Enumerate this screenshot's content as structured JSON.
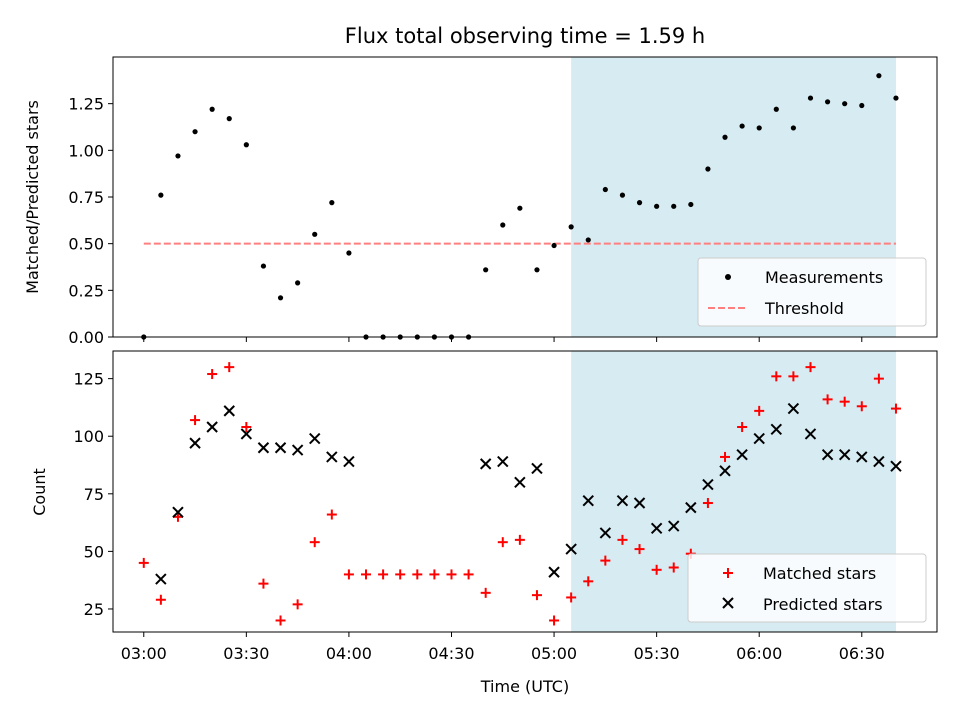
{
  "figure": {
    "title": "Flux total observing time = 1.59 h",
    "xlabel": "Time (UTC)",
    "x_ticks": [
      "03:00",
      "03:30",
      "04:00",
      "04:30",
      "05:00",
      "05:30",
      "06:00",
      "06:30"
    ],
    "highlight_color": "#add8e6"
  },
  "chart_data": [
    {
      "type": "scatter",
      "ylabel": "Matched/Predicted stars",
      "xlim": [
        "02:51",
        "06:52"
      ],
      "ylim": [
        0,
        1.5
      ],
      "y_ticks": [
        "0.00",
        "0.25",
        "0.50",
        "0.75",
        "1.00",
        "1.25"
      ],
      "highlight_span": [
        "05:05",
        "06:40"
      ],
      "legend": [
        {
          "label": "Measurements",
          "marker": "dot",
          "color": "#000000"
        },
        {
          "label": "Threshold",
          "marker": "dashed-line",
          "color": "#ff7f7f"
        }
      ],
      "legend_position": "lower-right",
      "threshold": {
        "value": 0.5,
        "x_start": "03:00",
        "x_end": "06:40"
      },
      "series": [
        {
          "name": "Measurements",
          "x": [
            "03:00",
            "03:05",
            "03:10",
            "03:15",
            "03:20",
            "03:25",
            "03:30",
            "03:35",
            "03:40",
            "03:45",
            "03:50",
            "03:55",
            "04:00",
            "04:05",
            "04:10",
            "04:15",
            "04:20",
            "04:25",
            "04:30",
            "04:35",
            "04:40",
            "04:45",
            "04:50",
            "04:55",
            "05:00",
            "05:05",
            "05:10",
            "05:15",
            "05:20",
            "05:25",
            "05:30",
            "05:35",
            "05:40",
            "05:45",
            "05:50",
            "05:55",
            "06:00",
            "06:05",
            "06:10",
            "06:15",
            "06:20",
            "06:25",
            "06:30",
            "06:35",
            "06:40"
          ],
          "y": [
            0,
            0.76,
            0.97,
            1.1,
            1.22,
            1.17,
            1.03,
            0.38,
            0.21,
            0.29,
            0.55,
            0.72,
            0.45,
            0,
            0,
            0,
            0,
            0,
            0,
            0,
            0.36,
            0.6,
            0.69,
            0.36,
            0.49,
            0.59,
            0.52,
            0.79,
            0.76,
            0.72,
            0.7,
            0.7,
            0.71,
            0.9,
            1.07,
            1.13,
            1.12,
            1.22,
            1.12,
            1.28,
            1.26,
            1.25,
            1.24,
            1.4,
            1.28
          ]
        }
      ]
    },
    {
      "type": "scatter",
      "ylabel": "Count",
      "xlim": [
        "02:51",
        "06:52"
      ],
      "ylim": [
        15,
        137
      ],
      "y_ticks": [
        "25",
        "50",
        "75",
        "100",
        "125"
      ],
      "highlight_span": [
        "05:05",
        "06:40"
      ],
      "legend": [
        {
          "label": "Matched stars",
          "marker": "plus",
          "color": "#ff0000"
        },
        {
          "label": "Predicted stars",
          "marker": "x",
          "color": "#000000"
        }
      ],
      "legend_position": "lower-right",
      "series": [
        {
          "name": "Matched stars",
          "x": [
            "03:00",
            "03:05",
            "03:10",
            "03:15",
            "03:20",
            "03:25",
            "03:30",
            "03:35",
            "03:40",
            "03:45",
            "03:50",
            "03:55",
            "04:00",
            "04:05",
            "04:10",
            "04:15",
            "04:20",
            "04:25",
            "04:30",
            "04:35",
            "04:40",
            "04:45",
            "04:50",
            "04:55",
            "05:00",
            "05:05",
            "05:10",
            "05:15",
            "05:20",
            "05:25",
            "05:30",
            "05:35",
            "05:40",
            "05:45",
            "05:50",
            "05:55",
            "06:00",
            "06:05",
            "06:10",
            "06:15",
            "06:20",
            "06:25",
            "06:30",
            "06:35",
            "06:40"
          ],
          "y": [
            45,
            29,
            65,
            107,
            127,
            130,
            104,
            36,
            20,
            27,
            54,
            66,
            40,
            40,
            40,
            40,
            40,
            40,
            40,
            40,
            32,
            54,
            55,
            31,
            20,
            30,
            37,
            46,
            55,
            51,
            42,
            43,
            49,
            71,
            91,
            104,
            111,
            126,
            126,
            130,
            116,
            115,
            113,
            125,
            112
          ]
        },
        {
          "name": "Predicted stars",
          "x": [
            "03:05",
            "03:10",
            "03:15",
            "03:20",
            "03:25",
            "03:30",
            "03:35",
            "03:40",
            "03:45",
            "03:50",
            "03:55",
            "04:00",
            "04:40",
            "04:45",
            "04:50",
            "04:55",
            "05:00",
            "05:05",
            "05:10",
            "05:15",
            "05:20",
            "05:25",
            "05:30",
            "05:35",
            "05:40",
            "05:45",
            "05:50",
            "05:55",
            "06:00",
            "06:05",
            "06:10",
            "06:15",
            "06:20",
            "06:25",
            "06:30",
            "06:35",
            "06:40"
          ],
          "y": [
            38,
            67,
            97,
            104,
            111,
            101,
            95,
            95,
            94,
            99,
            91,
            89,
            88,
            89,
            80,
            86,
            41,
            51,
            72,
            58,
            72,
            71,
            60,
            61,
            69,
            79,
            85,
            92,
            99,
            103,
            112,
            101,
            92,
            92,
            91,
            89,
            87
          ]
        }
      ]
    }
  ]
}
